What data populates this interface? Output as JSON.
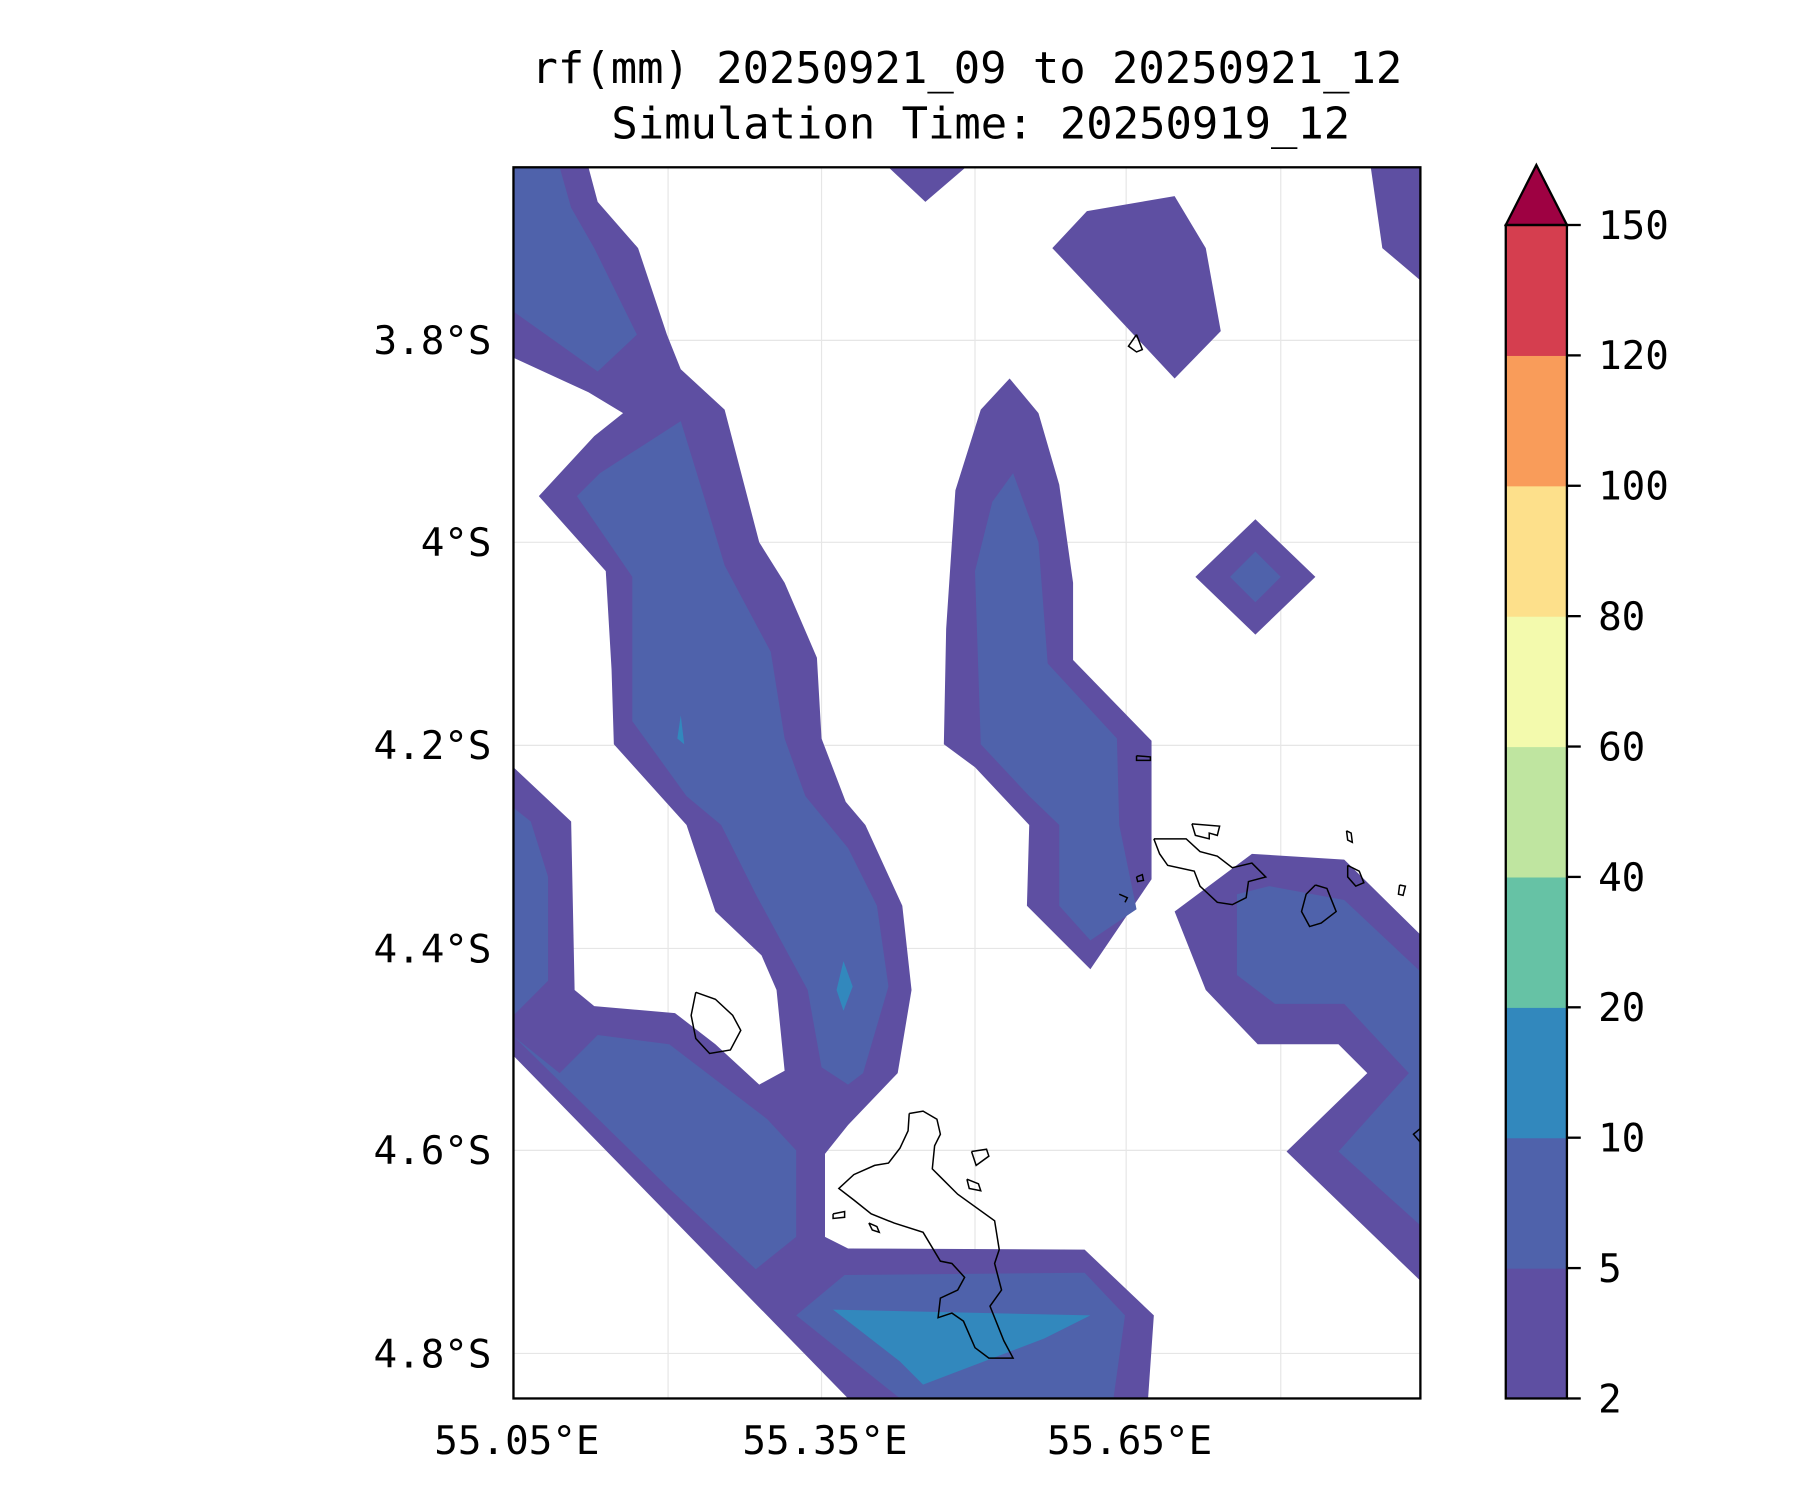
{
  "chart_data": {
    "type": "heatmap",
    "subtype": "filled-contour-map",
    "title": "rf(mm) 20250921_09 to 20250921_12",
    "subtitle": "Simulation Time: 20250919_12",
    "xlabel": "",
    "ylabel": "",
    "x_ticks": [
      "55.05°E",
      "55.35°E",
      "55.65°E"
    ],
    "y_ticks": [
      "3.8°S",
      "4°S",
      "4.2°S",
      "4.4°S",
      "4.6°S",
      "4.8°S"
    ],
    "xlim": [
      55.05,
      55.94
    ],
    "ylim": [
      -4.84,
      -3.63
    ],
    "grid": true,
    "colorbar": {
      "levels": [
        2,
        5,
        10,
        20,
        40,
        60,
        80,
        100,
        120,
        150
      ],
      "tick_labels": [
        "2",
        "5",
        "10",
        "20",
        "40",
        "60",
        "80",
        "100",
        "120",
        "150"
      ],
      "colors": [
        "#5e4fa2",
        "#4f62ab",
        "#3288bd",
        "#66c2a5",
        "#bfe5a0",
        "#f3faad",
        "#fde08b",
        "#f99c5a",
        "#d53e4f"
      ],
      "extend_color": "#9e0142",
      "extend": "max"
    },
    "observed_rainfall_ranges_mm": [
      "2-5",
      "5-10",
      "10-20"
    ]
  }
}
